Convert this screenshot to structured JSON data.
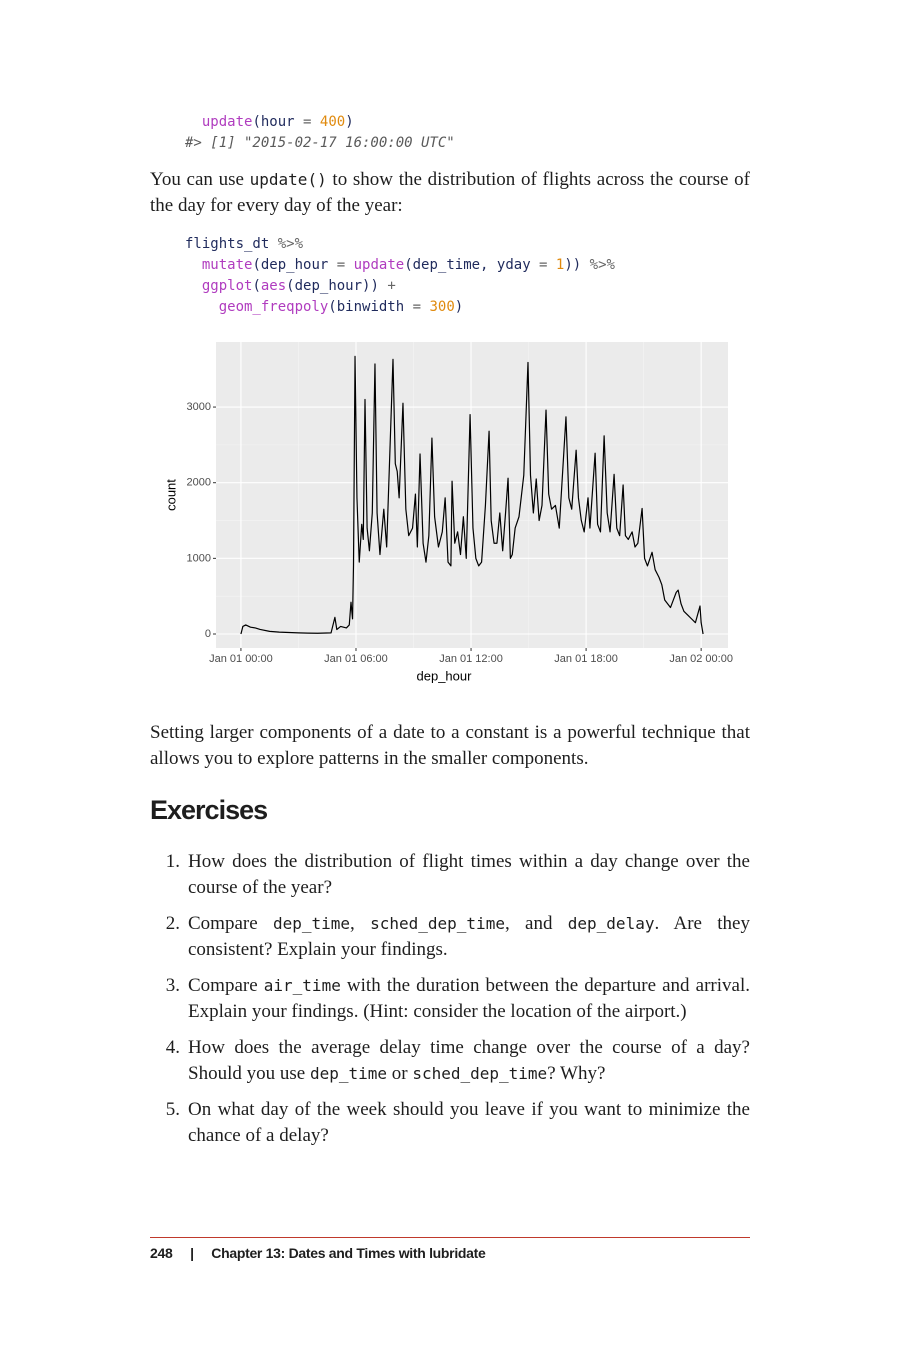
{
  "code_blocks": [
    {
      "lines": [
        [
          {
            "text": "  "
          },
          {
            "text": "update",
            "color": "#b03cbf"
          },
          {
            "text": "(hour "
          },
          {
            "text": "=",
            "color": "#666666"
          },
          {
            "text": " "
          },
          {
            "text": "400",
            "color": "#e08a0e"
          },
          {
            "text": ")"
          }
        ],
        [
          {
            "text": "#> [1] \"2015-02-17 16:00:00 UTC\"",
            "color": "#5a5a5a",
            "italic": true
          }
        ]
      ]
    },
    {
      "lines": [
        [
          {
            "text": "flights_dt "
          },
          {
            "text": "%>%",
            "color": "#666666"
          }
        ],
        [
          {
            "text": "  "
          },
          {
            "text": "mutate",
            "color": "#b03cbf"
          },
          {
            "text": "(dep_hour "
          },
          {
            "text": "=",
            "color": "#666666"
          },
          {
            "text": " "
          },
          {
            "text": "update",
            "color": "#b03cbf"
          },
          {
            "text": "(dep_time, yday "
          },
          {
            "text": "=",
            "color": "#666666"
          },
          {
            "text": " "
          },
          {
            "text": "1",
            "color": "#e08a0e"
          },
          {
            "text": ")) "
          },
          {
            "text": "%>%",
            "color": "#666666"
          }
        ],
        [
          {
            "text": "  "
          },
          {
            "text": "ggplot",
            "color": "#b03cbf"
          },
          {
            "text": "("
          },
          {
            "text": "aes",
            "color": "#b03cbf"
          },
          {
            "text": "(dep_hour)) "
          },
          {
            "text": "+",
            "color": "#666666"
          }
        ],
        [
          {
            "text": "    "
          },
          {
            "text": "geom_freqpoly",
            "color": "#b03cbf"
          },
          {
            "text": "(binwidth "
          },
          {
            "text": "=",
            "color": "#666666"
          },
          {
            "text": " "
          },
          {
            "text": "300",
            "color": "#e08a0e"
          },
          {
            "text": ")"
          }
        ]
      ]
    }
  ],
  "paragraphs": [
    [
      {
        "text": "You can use "
      },
      {
        "text": "update()",
        "mono": true
      },
      {
        "text": " to show the distribution of flights across the course of the day for every day of the year:"
      }
    ],
    [
      {
        "text": "Setting larger components of a date to a constant is a powerful tech­nique that allows you to explore patterns in the smaller components."
      }
    ]
  ],
  "heading": "Exercises",
  "exercises": [
    {
      "number": "1.",
      "segments": [
        {
          "text": "How does the distribution of flight times within a day change over the course of the year?"
        }
      ]
    },
    {
      "number": "2.",
      "segments": [
        {
          "text": "Compare "
        },
        {
          "text": "dep_time",
          "mono": true
        },
        {
          "text": ", "
        },
        {
          "text": "sched_dep_time",
          "mono": true
        },
        {
          "text": ", and "
        },
        {
          "text": "dep_delay",
          "mono": true
        },
        {
          "text": ". Are they consistent? Explain your findings."
        }
      ]
    },
    {
      "number": "3.",
      "segments": [
        {
          "text": "Compare "
        },
        {
          "text": "air_time",
          "mono": true
        },
        {
          "text": " with the duration between the departure and arrival. Explain your findings. (Hint: consider the location of the airport.)"
        }
      ]
    },
    {
      "number": "4.",
      "segments": [
        {
          "text": "How does the average delay time change over the course of a day? Should you use "
        },
        {
          "text": "dep_time",
          "mono": true
        },
        {
          "text": " or "
        },
        {
          "text": "sched_dep_time",
          "mono": true
        },
        {
          "text": "? Why?"
        }
      ]
    },
    {
      "number": "5.",
      "segments": [
        {
          "text": "On what day of the week should you leave if you want to mini­mize the chance of a delay?"
        }
      ]
    }
  ],
  "footer": {
    "page": "248",
    "separator": "|",
    "chapter": "Chapter 13: Dates and Times with lubridate"
  },
  "chart_data": {
    "type": "line",
    "xlabel": "dep_hour",
    "ylabel": "count",
    "color": "#000000",
    "grid": true,
    "xlim": [
      -1.3,
      25.4
    ],
    "ylim": [
      -185,
      3860
    ],
    "xticks": [
      {
        "value": 0,
        "label": "Jan 01 00:00"
      },
      {
        "value": 6,
        "label": "Jan 01 06:00"
      },
      {
        "value": 12,
        "label": "Jan 01 12:00"
      },
      {
        "value": 18,
        "label": "Jan 01 18:00"
      },
      {
        "value": 24,
        "label": "Jan 02 00:00"
      }
    ],
    "yticks": [
      0,
      1000,
      2000,
      3000
    ],
    "x": [
      0,
      0.1,
      0.25,
      0.5,
      0.75,
      1,
      1.5,
      2,
      2.5,
      3,
      3.5,
      4,
      4.7,
      4.9,
      5.0,
      5.2,
      5.5,
      5.65,
      5.74,
      5.82,
      5.87,
      5.95,
      6.05,
      6.17,
      6.3,
      6.38,
      6.47,
      6.58,
      6.7,
      6.85,
      6.99,
      7.1,
      7.25,
      7.45,
      7.6,
      7.93,
      8.05,
      8.15,
      8.25,
      8.45,
      8.6,
      8.75,
      8.95,
      9.1,
      9.2,
      9.34,
      9.5,
      9.65,
      9.8,
      9.96,
      10.1,
      10.3,
      10.5,
      10.65,
      10.8,
      10.95,
      11.01,
      11.15,
      11.3,
      11.45,
      11.6,
      11.75,
      11.95,
      12.1,
      12.25,
      12.4,
      12.55,
      12.75,
      12.94,
      13.05,
      13.2,
      13.35,
      13.5,
      13.65,
      13.8,
      13.93,
      14.05,
      14.15,
      14.3,
      14.5,
      14.75,
      14.97,
      15.1,
      15.25,
      15.4,
      15.55,
      15.7,
      15.91,
      16.05,
      16.2,
      16.4,
      16.6,
      16.95,
      17.1,
      17.25,
      17.48,
      17.6,
      17.75,
      17.9,
      18.1,
      18.2,
      18.47,
      18.6,
      18.75,
      18.94,
      19.1,
      19.25,
      19.46,
      19.6,
      19.75,
      19.93,
      20.05,
      20.2,
      20.4,
      20.55,
      20.7,
      20.92,
      21.05,
      21.2,
      21.44,
      21.6,
      21.8,
      21.95,
      22.1,
      22.25,
      22.4,
      22.55,
      22.7,
      22.8,
      22.95,
      23.1,
      23.3,
      23.5,
      23.7,
      23.94,
      24.0,
      24.1
    ],
    "values": [
      0,
      100,
      120,
      90,
      80,
      60,
      35,
      25,
      20,
      15,
      12,
      10,
      15,
      220,
      60,
      100,
      80,
      120,
      420,
      200,
      900,
      3670,
      1800,
      950,
      1450,
      1250,
      3100,
      1400,
      1100,
      1600,
      3570,
      1600,
      1050,
      1650,
      1150,
      3630,
      2250,
      2150,
      1800,
      3050,
      1650,
      1300,
      1400,
      1850,
      1150,
      2380,
      1200,
      950,
      1300,
      2590,
      1550,
      1150,
      1350,
      1800,
      950,
      900,
      2020,
      1200,
      1350,
      1050,
      1550,
      1000,
      2900,
      1400,
      1000,
      900,
      950,
      1700,
      2680,
      1500,
      1200,
      1200,
      1600,
      1100,
      1600,
      2060,
      1000,
      1050,
      1400,
      1550,
      2100,
      3590,
      2100,
      1600,
      2050,
      1500,
      1700,
      2960,
      1850,
      1650,
      1700,
      1400,
      2870,
      1800,
      1650,
      2430,
      1800,
      1500,
      1350,
      1800,
      1400,
      2390,
      1450,
      1350,
      2620,
      1600,
      1350,
      2110,
      1400,
      1300,
      1970,
      1300,
      1250,
      1350,
      1150,
      1200,
      1660,
      1000,
      900,
      1080,
      850,
      750,
      650,
      450,
      400,
      350,
      450,
      550,
      580,
      400,
      300,
      250,
      200,
      150,
      370,
      150,
      0
    ]
  }
}
